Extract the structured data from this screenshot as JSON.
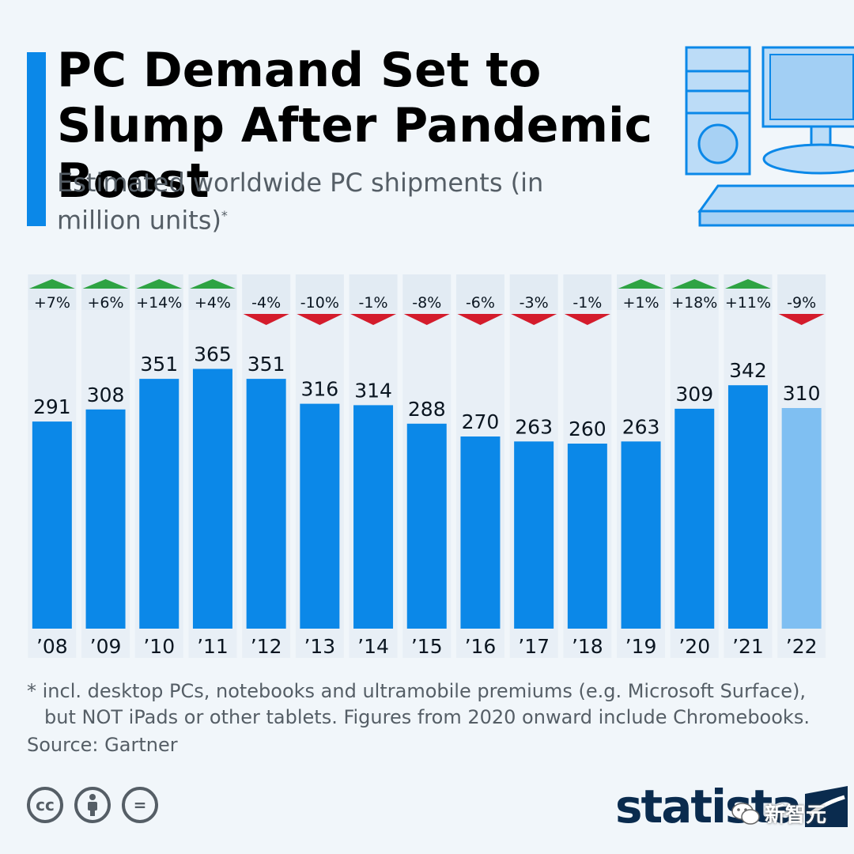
{
  "header": {
    "title": "PC Demand Set to Slump After Pandemic Boost",
    "subtitle": "Estimated worldwide PC shipments (in million units)",
    "subtitle_mark": "*"
  },
  "chart_data": {
    "type": "bar",
    "title": "PC Demand Set to Slump After Pandemic Boost",
    "subtitle": "Estimated worldwide PC shipments (in million units)",
    "categories": [
      "’08",
      "’09",
      "’10",
      "’11",
      "’12",
      "’13",
      "’14",
      "’15",
      "’16",
      "’17",
      "’18",
      "’19",
      "’20",
      "’21",
      "’22"
    ],
    "values": [
      291,
      308,
      351,
      365,
      351,
      316,
      314,
      288,
      270,
      263,
      260,
      263,
      309,
      342,
      310
    ],
    "changes": [
      "+7%",
      "+6%",
      "+14%",
      "+4%",
      "-4%",
      "-10%",
      "-1%",
      "-8%",
      "-6%",
      "-3%",
      "-1%",
      "+1%",
      "+18%",
      "+11%",
      "-9%"
    ],
    "estimate_from_index": 14,
    "ylim": [
      0,
      400
    ],
    "grid": false,
    "colors": {
      "bar": "#0b88e8",
      "bar_estimate": "#7fbff2",
      "up": "#2ea343",
      "down": "#d41c2c",
      "column_band": "#e2ebf3"
    }
  },
  "footnote": {
    "line1": "* incl. desktop PCs, notebooks and ultramobile premiums (e.g. Microsoft Surface),",
    "line2": "but NOT iPads or other tablets. Figures from 2020 onward include Chromebooks."
  },
  "source": "Source: Gartner",
  "license": {
    "cc": "cc",
    "nd": "="
  },
  "brand": "statista",
  "watermark": "新智元"
}
